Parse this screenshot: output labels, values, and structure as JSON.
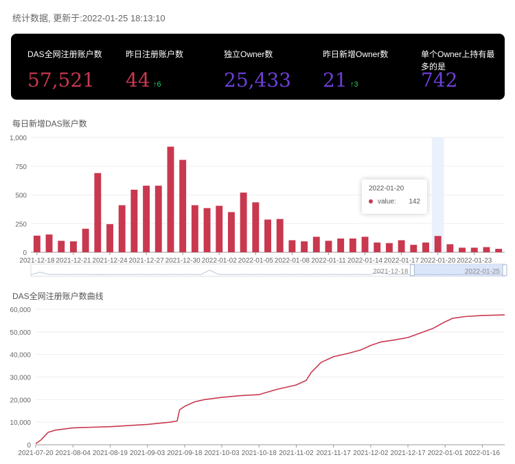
{
  "header": {
    "updated_text": "统计数据, 更新于:2022-01-25 18:13:10"
  },
  "stats": [
    {
      "label": "DAS全网注册账户数",
      "value": "57,521",
      "delta": "",
      "color": "#c8384f"
    },
    {
      "label": "昨日注册账户数",
      "value": "44",
      "delta": "6",
      "color": "#c8384f"
    },
    {
      "label": "独立Owner数",
      "value": "25,433",
      "delta": "",
      "color": "#6d3fd8"
    },
    {
      "label": "昨日新增Owner数",
      "value": "21",
      "delta": "3",
      "color": "#6d3fd8"
    },
    {
      "label": "单个Owner上持有最多的是",
      "value": "742",
      "delta": "",
      "color": "#6d3fd8"
    }
  ],
  "colors": {
    "accent_red": "#c8384f",
    "accent_purple": "#6d3fd8",
    "delta_green": "#2dd06b"
  },
  "tooltip": {
    "date": "2022-01-20",
    "series_name": "value:",
    "value": "142"
  },
  "chart_data": [
    {
      "type": "bar",
      "title": "每日新增DAS账户数",
      "categories": [
        "2021-12-18",
        "2021-12-19",
        "2021-12-20",
        "2021-12-21",
        "2021-12-22",
        "2021-12-23",
        "2021-12-24",
        "2021-12-25",
        "2021-12-26",
        "2021-12-27",
        "2021-12-28",
        "2021-12-29",
        "2021-12-30",
        "2021-12-31",
        "2022-01-01",
        "2022-01-02",
        "2022-01-03",
        "2022-01-04",
        "2022-01-05",
        "2022-01-06",
        "2022-01-07",
        "2022-01-08",
        "2022-01-09",
        "2022-01-10",
        "2022-01-11",
        "2022-01-12",
        "2022-01-13",
        "2022-01-14",
        "2022-01-15",
        "2022-01-16",
        "2022-01-17",
        "2022-01-18",
        "2022-01-19",
        "2022-01-20",
        "2022-01-21",
        "2022-01-22",
        "2022-01-23",
        "2022-01-24",
        "2022-01-25"
      ],
      "values": [
        145,
        155,
        100,
        95,
        205,
        690,
        245,
        410,
        545,
        580,
        580,
        920,
        805,
        410,
        385,
        405,
        350,
        520,
        435,
        285,
        290,
        105,
        95,
        135,
        100,
        120,
        120,
        135,
        85,
        80,
        105,
        65,
        85,
        142,
        70,
        40,
        40,
        45,
        30
      ],
      "x_tick_labels": [
        "2021-12-18",
        "2021-12-21",
        "2021-12-24",
        "2021-12-27",
        "2021-12-30",
        "2022-01-02",
        "2022-01-05",
        "2022-01-08",
        "2022-01-11",
        "2022-01-14",
        "2022-01-17",
        "2022-01-20",
        "2022-01-23"
      ],
      "y_ticks": [
        "0",
        "250",
        "500",
        "750",
        "1,000"
      ],
      "ylim": [
        0,
        1000
      ],
      "highlight_category": "2022-01-20",
      "zoom": {
        "start_label": "2021-12-18",
        "end_label": "2022-01-25"
      }
    },
    {
      "type": "line",
      "title": "DAS全网注册账户数曲线",
      "x": [
        "2021-07-20",
        "2021-07-22",
        "2021-07-25",
        "2021-07-28",
        "2021-08-04",
        "2021-08-19",
        "2021-09-03",
        "2021-09-12",
        "2021-09-15",
        "2021-09-16",
        "2021-09-18",
        "2021-09-22",
        "2021-09-26",
        "2021-10-03",
        "2021-10-11",
        "2021-10-18",
        "2021-10-25",
        "2021-11-02",
        "2021-11-06",
        "2021-11-08",
        "2021-11-12",
        "2021-11-17",
        "2021-11-23",
        "2021-11-28",
        "2021-12-02",
        "2021-12-06",
        "2021-12-12",
        "2021-12-17",
        "2021-12-22",
        "2021-12-27",
        "2022-01-01",
        "2022-01-04",
        "2022-01-09",
        "2022-01-16",
        "2022-01-25"
      ],
      "values": [
        500,
        2000,
        5500,
        6500,
        7500,
        8000,
        9000,
        10000,
        10500,
        15500,
        17000,
        19000,
        20000,
        21000,
        21800,
        22200,
        24500,
        26500,
        28500,
        32000,
        36500,
        39000,
        40500,
        42000,
        44000,
        45500,
        46500,
        47500,
        49500,
        51500,
        54500,
        56000,
        56800,
        57300,
        57521
      ],
      "x_tick_labels": [
        "2021-07-20",
        "2021-08-04",
        "2021-08-19",
        "2021-09-03",
        "2021-09-18",
        "2021-10-03",
        "2021-10-18",
        "2021-11-02",
        "2021-11-17",
        "2021-12-02",
        "2021-12-17",
        "2022-01-01",
        "2022-01-16"
      ],
      "y_ticks": [
        "0",
        "10,000",
        "20,000",
        "30,000",
        "40,000",
        "50,000",
        "60,000"
      ],
      "ylim": [
        0,
        60000
      ]
    }
  ]
}
